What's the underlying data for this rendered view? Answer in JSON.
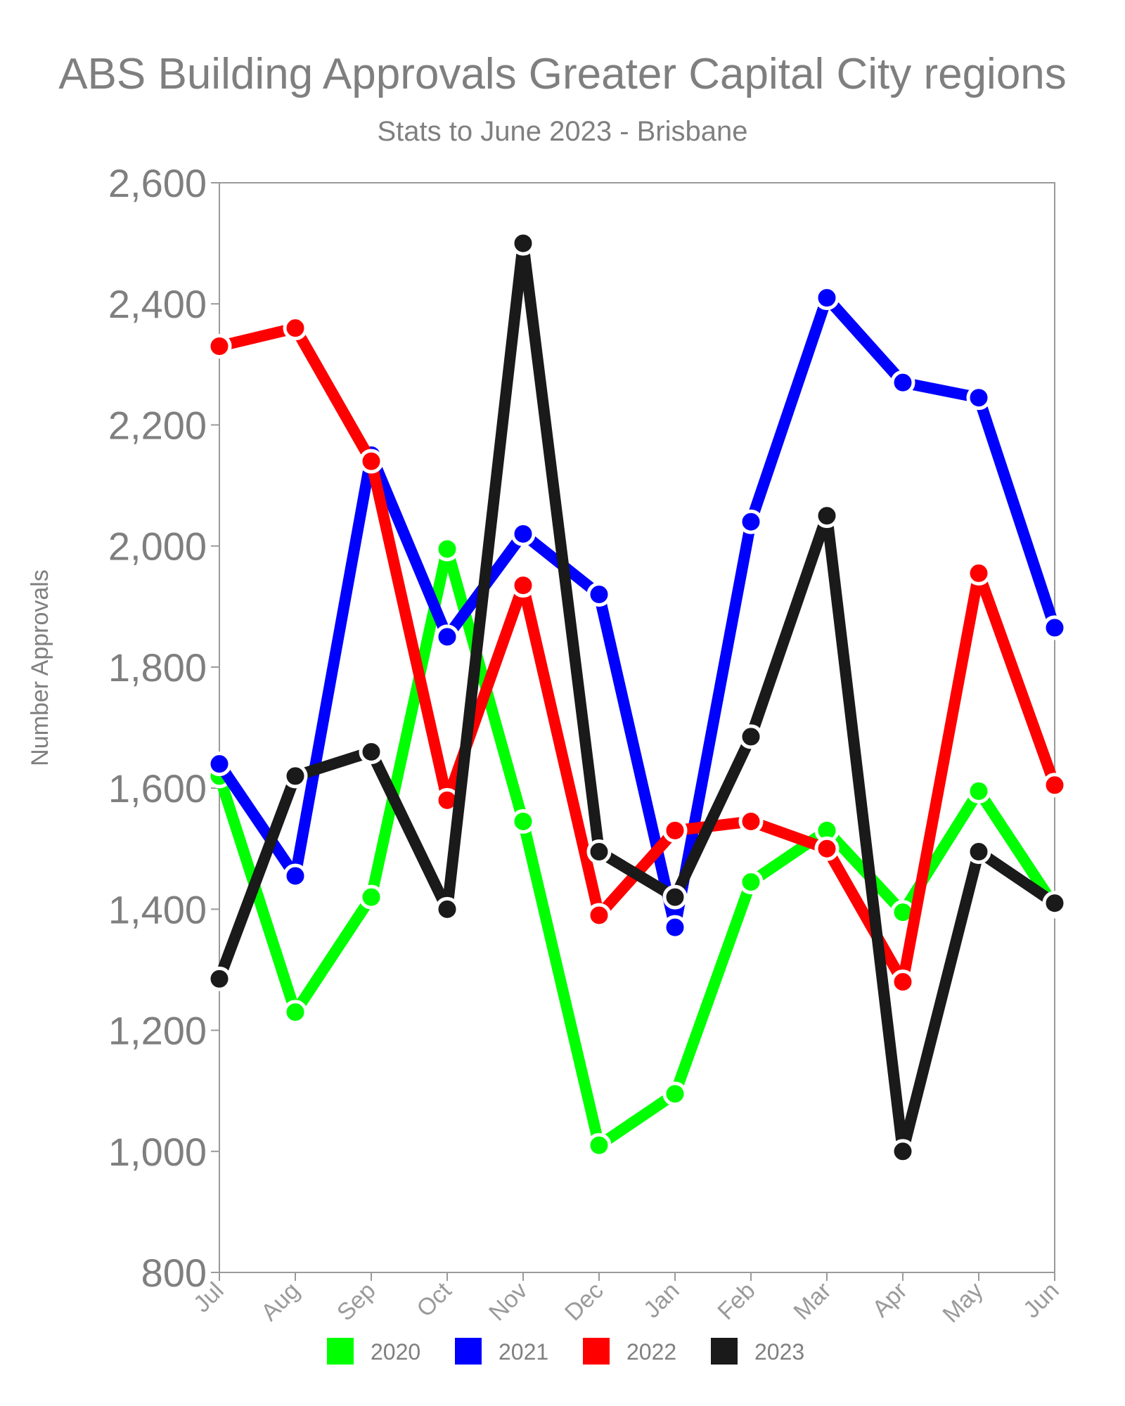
{
  "chart_data": {
    "type": "line",
    "title": "ABS Building Approvals Greater Capital City regions",
    "subtitle": "Stats to June 2023 - Brisbane",
    "xlabel": "",
    "ylabel": "Number Approvals",
    "ylim": [
      800,
      2600
    ],
    "yticks": [
      "800",
      "1,000",
      "1,200",
      "1,400",
      "1,600",
      "1,800",
      "2,000",
      "2,200",
      "2,400",
      "2,600"
    ],
    "ytick_values": [
      800,
      1000,
      1200,
      1400,
      1600,
      1800,
      2000,
      2200,
      2400,
      2600
    ],
    "categories": [
      "Jul",
      "Aug",
      "Sep",
      "Oct",
      "Nov",
      "Dec",
      "Jan",
      "Feb",
      "Mar",
      "Apr",
      "May",
      "Jun"
    ],
    "grid": false,
    "legend_position": "bottom",
    "series": [
      {
        "name": "2020",
        "color": "#00ff00",
        "values": [
          1620,
          1230,
          1420,
          1995,
          1545,
          1010,
          1095,
          1445,
          1530,
          1395,
          1595,
          1405
        ]
      },
      {
        "name": "2021",
        "color": "#0000ff",
        "values": [
          1640,
          1455,
          2150,
          1850,
          2020,
          1920,
          1370,
          2040,
          2410,
          2270,
          2245,
          1865
        ]
      },
      {
        "name": "2022",
        "color": "#ff0000",
        "values": [
          2330,
          2360,
          2140,
          1580,
          1935,
          1390,
          1530,
          1545,
          1500,
          1280,
          1955,
          1605
        ]
      },
      {
        "name": "2023",
        "color": "#1a1a1a",
        "values": [
          1285,
          1620,
          1660,
          1400,
          2500,
          1495,
          1420,
          1685,
          2050,
          1000,
          1495,
          1410
        ]
      }
    ]
  }
}
